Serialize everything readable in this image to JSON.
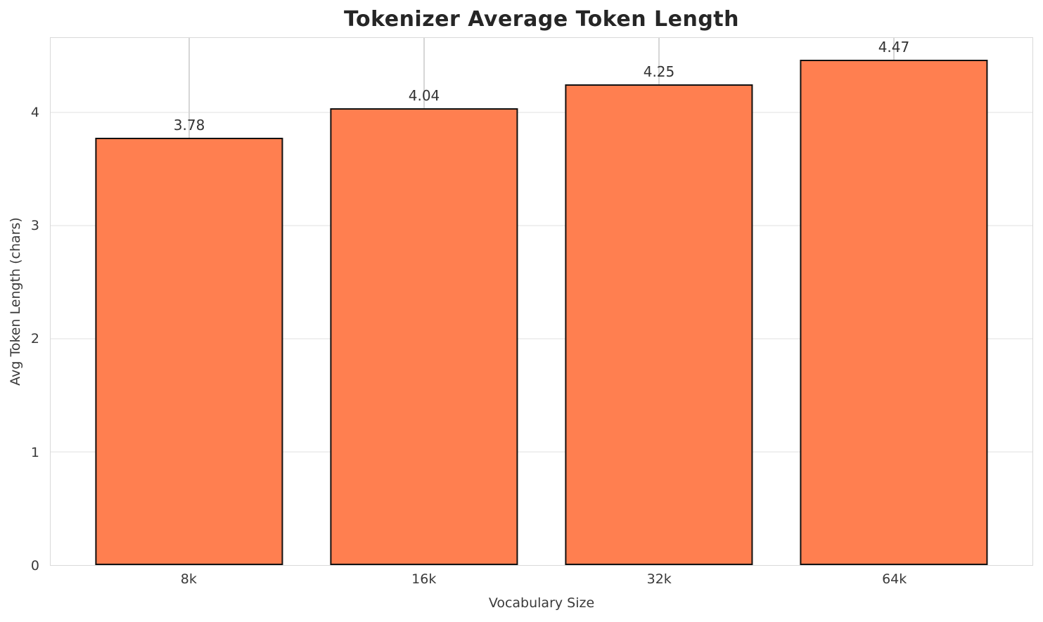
{
  "chart_data": {
    "type": "bar",
    "title": "Tokenizer Average Token Length",
    "xlabel": "Vocabulary Size",
    "ylabel": "Avg Token Length (chars)",
    "categories": [
      "8k",
      "16k",
      "32k",
      "64k"
    ],
    "values": [
      3.78,
      4.04,
      4.25,
      4.47
    ],
    "value_labels": [
      "3.78",
      "4.04",
      "4.25",
      "4.47"
    ],
    "yticks": [
      0,
      1,
      2,
      3,
      4
    ],
    "ytick_labels": [
      "0",
      "1",
      "2",
      "3",
      "4"
    ],
    "ylim": [
      0,
      4.66
    ],
    "xlim": [
      -0.59,
      3.59
    ],
    "bar_unit_width": 0.8,
    "grid": true,
    "legend_position": "none",
    "bar_color": "#FF7F50",
    "bar_edge_color": "#111111",
    "hgrid_color": "#f0f0f0",
    "vgrid_color": "#d6d6d6",
    "spine_color": "#d9d9d9",
    "title_color": "#262626",
    "text_color": "#3a3a3a"
  }
}
